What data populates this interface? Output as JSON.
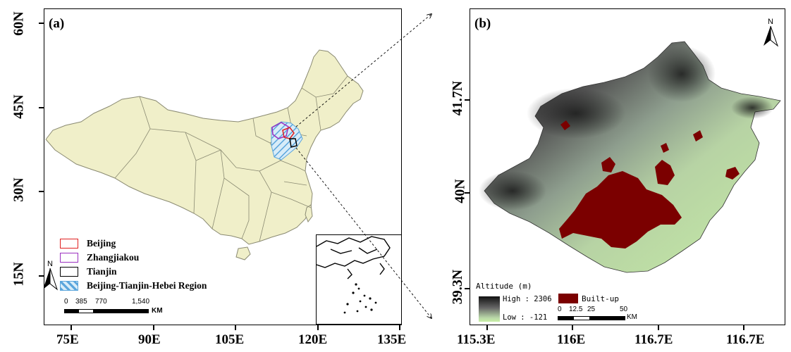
{
  "panel_a": {
    "label": "(a)",
    "y_ticks": [
      "60N",
      "45N",
      "30N",
      "15N"
    ],
    "x_ticks": [
      "75E",
      "90E",
      "105E",
      "120E",
      "135E"
    ],
    "legend": [
      {
        "label": "Beijing",
        "color": "#e02020",
        "style": "outline"
      },
      {
        "label": "Zhangjiakou",
        "color": "#9b30c0",
        "style": "outline"
      },
      {
        "label": "Tianjin",
        "color": "#000000",
        "style": "outline"
      },
      {
        "label": "Beijing-Tianjin-Hebei Region",
        "color": "#6aaee0",
        "style": "hatch"
      }
    ],
    "north_label": "N",
    "scale_labels": [
      "0",
      "385",
      "770",
      "1,540"
    ],
    "scale_unit": "KM",
    "land_color": "#f0efc9"
  },
  "panel_b": {
    "label": "(b)",
    "y_ticks": [
      "41.7N",
      "40N",
      "39.3N"
    ],
    "x_ticks": [
      "115.3E",
      "116E",
      "116.7E",
      "116.7E"
    ],
    "north_label": "N",
    "altitude_title": "Altitude (m)",
    "altitude_high": "High : 2306",
    "altitude_low": "Low : -121",
    "builtup_label": "Built-up",
    "builtup_color": "#7b0000",
    "scale_labels": [
      "0",
      "12.5",
      "25",
      "50"
    ],
    "scale_unit": "KM"
  }
}
